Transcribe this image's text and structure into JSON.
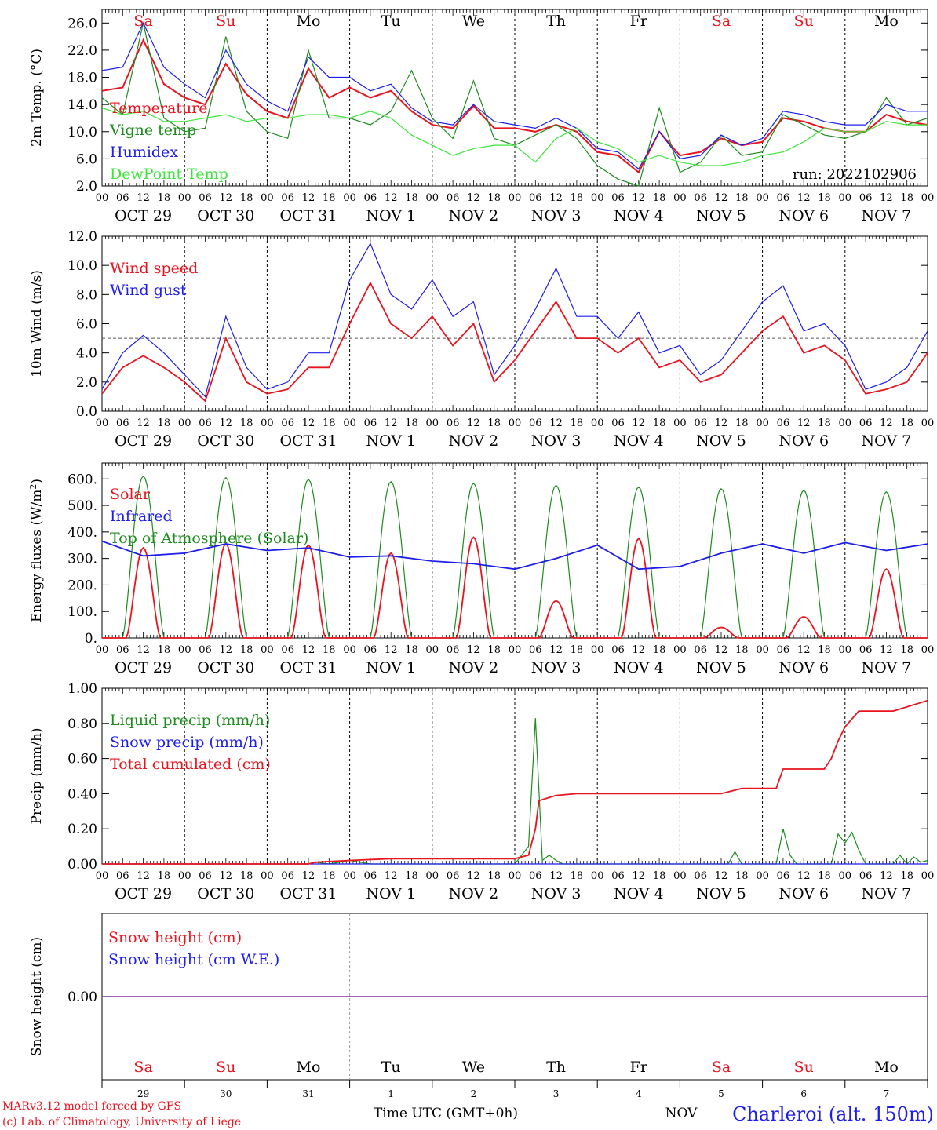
{
  "day_names": [
    "Sa",
    "Su",
    "Mo",
    "Tu",
    "We",
    "Th",
    "Fr",
    "Sa",
    "Su",
    "Mo"
  ],
  "weekend_color": "#e8141e",
  "date_labels": [
    "OCT 29",
    "OCT 30",
    "OCT 31",
    "NOV  1",
    "NOV  2",
    "NOV  3",
    "NOV  4",
    "NOV  5",
    "NOV  6",
    "NOV  7"
  ],
  "hour_labels": [
    "00",
    "06",
    "12",
    "18"
  ],
  "hour_last": "00",
  "bottom_day_numbers": [
    "29",
    "30",
    "31",
    "1",
    "2",
    "3",
    "4",
    "5",
    "6",
    "7"
  ],
  "bottom_month": "NOV",
  "footer": {
    "model": "MARv3.12 model forced by GFS",
    "copyright": "(c) Lab. of Climatology, University of Liege",
    "axis_title": "Time UTC (GMT+0h)",
    "station": "Charleroi (alt. 150m)"
  },
  "chart_data": [
    {
      "type": "line",
      "ylabel": "2m Temp. (°C)",
      "ylim": [
        2,
        28
      ],
      "yticks": [
        "2.0",
        "6.0",
        "10.0",
        "14.0",
        "18.0",
        "22.0",
        "26.0"
      ],
      "ytick_values": [
        2,
        6,
        10,
        14,
        18,
        22,
        26
      ],
      "annotation": "run: 2022102906",
      "x_hours": [
        0,
        6,
        12,
        18,
        24,
        30,
        36,
        42,
        48,
        54,
        60,
        66,
        72,
        78,
        84,
        90,
        96,
        102,
        108,
        114,
        120,
        126,
        132,
        138,
        144,
        150,
        156,
        162,
        168,
        174,
        180,
        186,
        192,
        198,
        204,
        210,
        216,
        222,
        228,
        234,
        240
      ],
      "series": [
        {
          "name": "Temperature",
          "color": "#e8141e",
          "values": [
            16.0,
            16.5,
            23.5,
            17.0,
            15.0,
            14.0,
            20.0,
            15.5,
            13.0,
            12.0,
            19.3,
            15.0,
            16.5,
            15.0,
            16.0,
            13.0,
            11.0,
            10.5,
            13.8,
            10.5,
            10.5,
            10.0,
            11.0,
            10.0,
            7.0,
            6.5,
            4.0,
            10.0,
            6.5,
            7.0,
            9.0,
            8.0,
            8.5,
            12.0,
            11.5,
            10.5,
            10.0,
            10.0,
            12.5,
            11.5,
            11.0
          ]
        },
        {
          "name": "Vigne temp",
          "color": "#1e8c1e",
          "values": [
            15.0,
            12.5,
            26.0,
            12.0,
            10.0,
            10.5,
            24.0,
            13.0,
            10.0,
            9.0,
            22.0,
            12.0,
            12.0,
            11.0,
            13.0,
            19.0,
            12.0,
            9.0,
            17.5,
            9.0,
            8.0,
            9.5,
            11.0,
            9.0,
            5.0,
            3.0,
            2.0,
            13.5,
            4.0,
            5.5,
            9.5,
            6.5,
            7.0,
            12.5,
            11.0,
            9.5,
            9.0,
            10.0,
            15.0,
            11.0,
            12.0
          ]
        },
        {
          "name": "Humidex",
          "color": "#1e1eec",
          "values": [
            19.0,
            19.5,
            26.0,
            19.5,
            17.0,
            15.0,
            22.0,
            17.0,
            14.5,
            13.0,
            21.0,
            18.0,
            18.0,
            16.0,
            17.0,
            13.5,
            11.5,
            11.0,
            14.0,
            11.5,
            11.0,
            10.5,
            12.0,
            10.5,
            7.5,
            7.0,
            4.5,
            10.0,
            6.0,
            6.5,
            9.5,
            8.0,
            9.0,
            13.0,
            12.5,
            11.5,
            11.0,
            11.0,
            14.0,
            13.0,
            13.0
          ]
        },
        {
          "name": "DewPoint Temp",
          "color": "#3ce63c",
          "values": [
            13.5,
            12.5,
            13.0,
            11.5,
            11.5,
            12.0,
            12.5,
            11.5,
            12.0,
            12.0,
            12.5,
            12.5,
            12.0,
            13.0,
            12.0,
            9.5,
            8.0,
            6.5,
            7.5,
            8.0,
            8.0,
            5.5,
            9.0,
            10.5,
            8.5,
            7.5,
            5.5,
            6.5,
            5.5,
            5.0,
            5.0,
            5.5,
            6.5,
            7.0,
            8.5,
            10.5,
            10.0,
            10.0,
            11.5,
            11.0,
            11.0
          ]
        }
      ]
    },
    {
      "type": "line",
      "ylabel": "10m Wind (m/s)",
      "ylim": [
        0,
        12
      ],
      "yticks": [
        "0.0",
        "2.0",
        "4.0",
        "6.0",
        "8.0",
        "10.0",
        "12.0"
      ],
      "ytick_values": [
        0,
        2,
        4,
        6,
        8,
        10,
        12
      ],
      "reference_line": 5,
      "x_hours": [
        0,
        6,
        12,
        18,
        24,
        30,
        36,
        42,
        48,
        54,
        60,
        66,
        72,
        78,
        84,
        90,
        96,
        102,
        108,
        114,
        120,
        126,
        132,
        138,
        144,
        150,
        156,
        162,
        168,
        174,
        180,
        186,
        192,
        198,
        204,
        210,
        216,
        222,
        228,
        234,
        240
      ],
      "series": [
        {
          "name": "Wind speed",
          "color": "#e8141e",
          "values": [
            1.2,
            3.0,
            3.8,
            3.0,
            2.0,
            0.7,
            5.0,
            2.0,
            1.2,
            1.5,
            3.0,
            3.0,
            6.0,
            8.8,
            6.0,
            5.0,
            6.5,
            4.5,
            6.0,
            2.0,
            3.5,
            5.5,
            7.5,
            5.0,
            5.0,
            4.0,
            5.0,
            3.0,
            3.5,
            2.0,
            2.5,
            4.0,
            5.5,
            6.5,
            4.0,
            4.5,
            3.5,
            1.2,
            1.5,
            2.0,
            4.0
          ]
        },
        {
          "name": "Wind gust",
          "color": "#1e1eec",
          "values": [
            1.5,
            4.0,
            5.2,
            4.0,
            2.5,
            1.0,
            6.5,
            3.0,
            1.5,
            2.0,
            4.0,
            4.0,
            9.0,
            11.5,
            8.0,
            7.0,
            9.0,
            6.5,
            7.5,
            2.5,
            4.5,
            7.0,
            9.8,
            6.5,
            6.5,
            5.0,
            6.8,
            4.0,
            4.5,
            2.5,
            3.5,
            5.5,
            7.5,
            8.6,
            5.5,
            6.0,
            4.5,
            1.5,
            2.0,
            3.0,
            5.5
          ]
        }
      ]
    },
    {
      "type": "line",
      "ylabel": "Energy fluxes (W/m²)",
      "ylim": [
        0,
        660
      ],
      "yticks": [
        "0.",
        "100.",
        "200.",
        "300.",
        "400.",
        "500.",
        "600."
      ],
      "ytick_values": [
        0,
        100,
        200,
        300,
        400,
        500,
        600
      ],
      "peaks": {
        "toa_peaks": [
          610,
          605,
          598,
          590,
          583,
          576,
          569,
          563,
          557,
          551
        ],
        "solar_peaks": [
          340,
          355,
          350,
          320,
          380,
          140,
          375,
          40,
          80,
          260
        ]
      },
      "series": [
        {
          "name": "Solar",
          "color": "#e8141e"
        },
        {
          "name": "Infrared",
          "color": "#1e1eec",
          "x_hours": [
            0,
            12,
            24,
            36,
            48,
            60,
            72,
            84,
            96,
            108,
            120,
            132,
            144,
            156,
            168,
            180,
            192,
            204,
            216,
            228,
            240
          ],
          "values": [
            365,
            310,
            320,
            355,
            330,
            340,
            305,
            310,
            290,
            280,
            260,
            300,
            350,
            260,
            270,
            320,
            355,
            320,
            360,
            330,
            355
          ]
        },
        {
          "name": "Top of Atmosphere (Solar)",
          "color": "#1e8c1e"
        }
      ]
    },
    {
      "type": "line",
      "ylabel": "Precip (mm/h)",
      "ylim": [
        0,
        1.0
      ],
      "yticks": [
        "0.00",
        "0.20",
        "0.40",
        "0.60",
        "0.80",
        "1.00"
      ],
      "ytick_values": [
        0,
        0.2,
        0.4,
        0.6,
        0.8,
        1.0
      ],
      "series": [
        {
          "name": "Liquid precip (mm/h)",
          "color": "#1e8c1e",
          "x_hours": [
            0,
            60,
            62,
            66,
            72,
            78,
            120,
            124,
            126,
            128,
            130,
            132,
            134,
            138,
            140,
            182,
            184,
            186,
            196,
            198,
            200,
            202,
            212,
            214,
            216,
            218,
            220,
            222,
            230,
            232,
            234,
            236,
            238,
            240
          ],
          "values": [
            0,
            0,
            0.01,
            0,
            0.02,
            0,
            0,
            0.1,
            0.83,
            0.02,
            0.05,
            0.02,
            0,
            0,
            0,
            0,
            0.07,
            0,
            0,
            0.2,
            0.05,
            0,
            0,
            0.17,
            0.12,
            0.18,
            0.08,
            0,
            0,
            0.05,
            0,
            0.04,
            0.01,
            0.02
          ]
        },
        {
          "name": "Snow precip (mm/h)",
          "color": "#1e1eec",
          "x_hours": [
            0,
            240
          ],
          "values": [
            0,
            0
          ]
        },
        {
          "name": "Total cumulated (cm)",
          "color": "#e8141e",
          "x_hours": [
            0,
            60,
            62,
            72,
            84,
            100,
            120,
            124,
            126,
            127,
            132,
            138,
            160,
            174,
            180,
            186,
            196,
            198,
            210,
            212,
            214,
            216,
            220,
            230,
            240
          ],
          "values": [
            0,
            0,
            0.01,
            0.02,
            0.03,
            0.03,
            0.03,
            0.05,
            0.2,
            0.36,
            0.39,
            0.4,
            0.4,
            0.4,
            0.4,
            0.43,
            0.43,
            0.54,
            0.54,
            0.6,
            0.7,
            0.78,
            0.87,
            0.87,
            0.93
          ]
        }
      ]
    },
    {
      "type": "line",
      "ylabel": "Snow height (cm)",
      "ylim": [
        -1,
        1
      ],
      "yticks": [
        "0.00"
      ],
      "ytick_values": [
        0
      ],
      "series": [
        {
          "name": "Snow height (cm)",
          "color": "#e8141e",
          "x_hours": [
            0,
            240
          ],
          "values": [
            0,
            0
          ]
        },
        {
          "name": "Snow height (cm W.E.)",
          "color": "#1e1eec",
          "x_hours": [
            0,
            240
          ],
          "values": [
            0,
            0
          ]
        }
      ]
    }
  ]
}
